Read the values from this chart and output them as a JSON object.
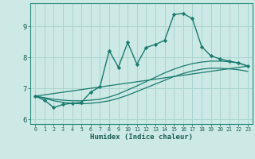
{
  "xlabel": "Humidex (Indice chaleur)",
  "bg_color": "#cce9e5",
  "grid_color": "#aad4cf",
  "line_color": "#1a7a6e",
  "xlim": [
    -0.5,
    23.5
  ],
  "ylim": [
    5.85,
    9.75
  ],
  "xticks": [
    0,
    1,
    2,
    3,
    4,
    5,
    6,
    7,
    8,
    9,
    10,
    11,
    12,
    13,
    14,
    15,
    16,
    17,
    18,
    19,
    20,
    21,
    22,
    23
  ],
  "yticks": [
    6,
    7,
    8,
    9
  ],
  "series_main": {
    "x": [
      0,
      1,
      2,
      3,
      4,
      5,
      6,
      7,
      8,
      9,
      10,
      11,
      12,
      13,
      14,
      15,
      16,
      17,
      18,
      19,
      20,
      21,
      22,
      23
    ],
    "y": [
      6.75,
      6.62,
      6.38,
      6.48,
      6.52,
      6.55,
      6.88,
      7.05,
      8.22,
      7.68,
      8.48,
      7.78,
      8.32,
      8.42,
      8.55,
      9.38,
      9.42,
      9.25,
      8.35,
      8.05,
      7.95,
      7.88,
      7.82,
      7.72
    ]
  },
  "series_smooth1": {
    "x": [
      0,
      23
    ],
    "y": [
      6.75,
      7.72
    ]
  },
  "series_smooth2": {
    "x": [
      0,
      1,
      2,
      3,
      4,
      5,
      6,
      7,
      8,
      9,
      10,
      11,
      12,
      13,
      14,
      15,
      16,
      17,
      18,
      19,
      20,
      21,
      22,
      23
    ],
    "y": [
      6.75,
      6.7,
      6.65,
      6.62,
      6.6,
      6.6,
      6.62,
      6.65,
      6.72,
      6.82,
      6.95,
      7.08,
      7.22,
      7.36,
      7.5,
      7.62,
      7.72,
      7.8,
      7.85,
      7.88,
      7.88,
      7.86,
      7.82,
      7.72
    ]
  },
  "series_smooth3": {
    "x": [
      0,
      1,
      2,
      3,
      4,
      5,
      6,
      7,
      8,
      9,
      10,
      11,
      12,
      13,
      14,
      15,
      16,
      17,
      18,
      19,
      20,
      21,
      22,
      23
    ],
    "y": [
      6.75,
      6.68,
      6.6,
      6.55,
      6.52,
      6.5,
      6.52,
      6.55,
      6.6,
      6.68,
      6.78,
      6.9,
      7.02,
      7.14,
      7.26,
      7.38,
      7.48,
      7.56,
      7.62,
      7.65,
      7.65,
      7.63,
      7.6,
      7.55
    ]
  }
}
